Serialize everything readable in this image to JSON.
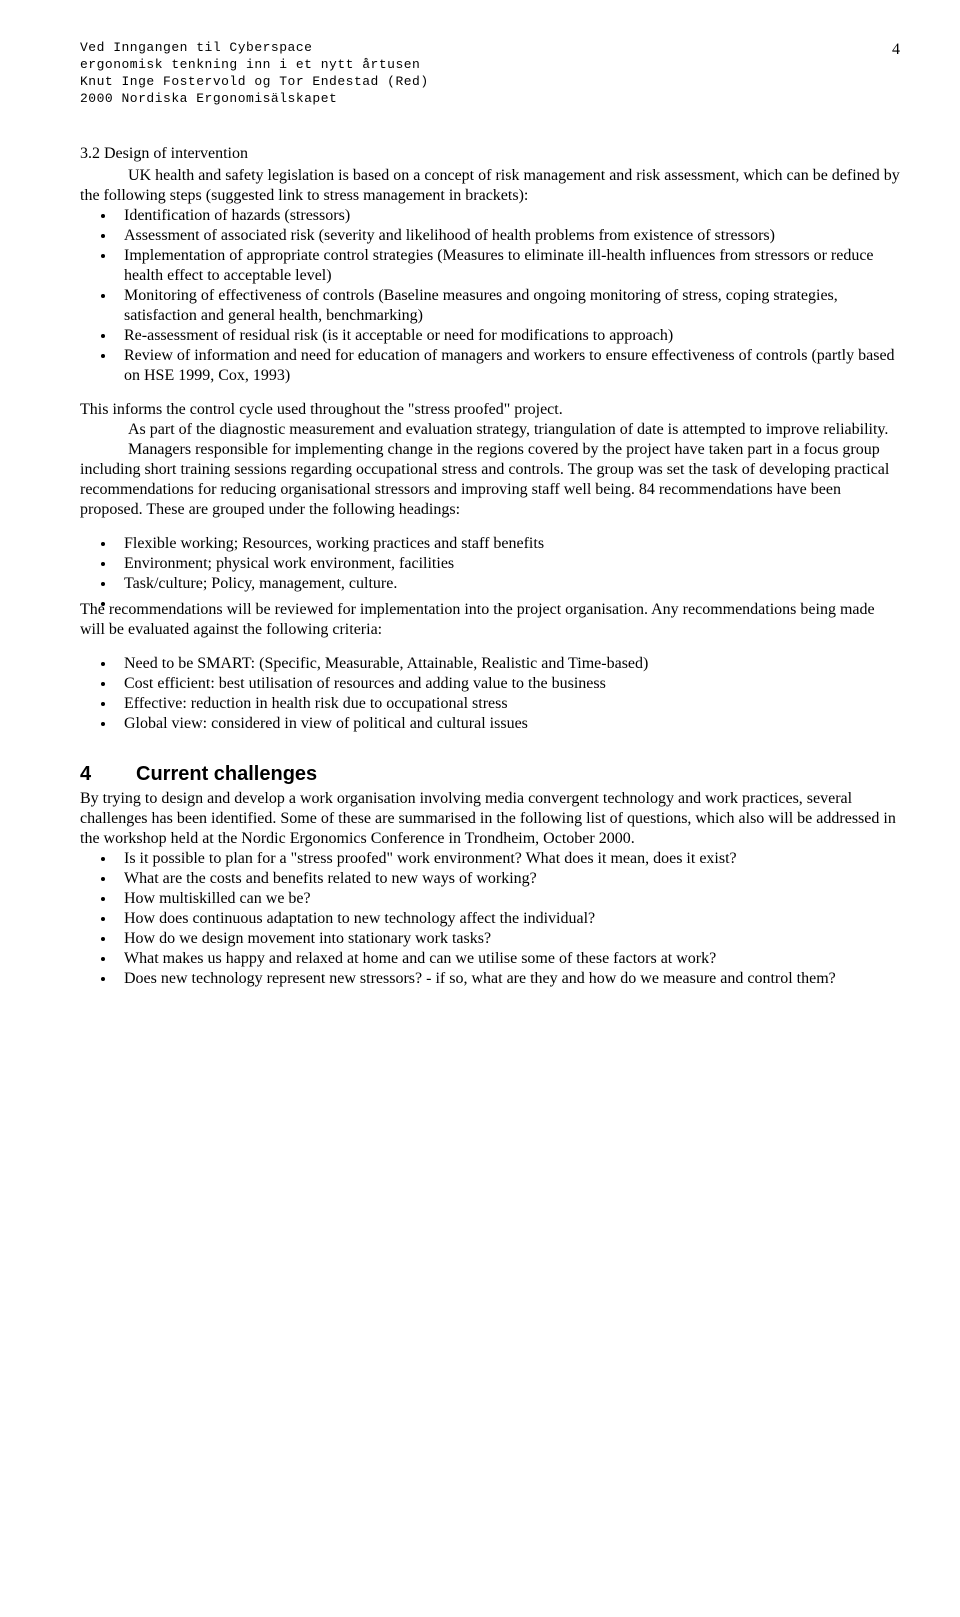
{
  "header": {
    "line1": "Ved Inngangen til Cyberspace",
    "line2": "ergonomisk tenkning inn i et nytt årtusen",
    "line3": "Knut Inge Fostervold og Tor Endestad (Red)",
    "line4": "2000 Nordiska Ergonomisälskapet",
    "page_number": "4"
  },
  "section32": {
    "title": "3.2 Design of intervention",
    "intro": "UK health and safety legislation is based on a concept of risk management and risk assessment, which can be defined by the following steps (suggested link to stress management in brackets):",
    "bullets": [
      "Identification of hazards (stressors)",
      "Assessment of associated risk (severity and likelihood of health problems from existence of stressors)",
      "Implementation of appropriate control strategies (Measures to eliminate ill-health influences from stressors or reduce health effect to acceptable level)",
      "Monitoring of effectiveness of controls (Baseline measures and ongoing monitoring of stress, coping strategies, satisfaction and general health, benchmarking)",
      "Re-assessment of residual risk (is it acceptable or need for modifications to approach)",
      "Review of information and need for education of managers and workers to ensure effectiveness of controls (partly based on HSE 1999, Cox, 1993)"
    ],
    "para1": "This informs the control cycle used throughout the \"stress proofed\" project.",
    "para2": "As part of the diagnostic measurement and evaluation strategy, triangulation of date is attempted to improve reliability.",
    "para3": "Managers responsible for implementing change in the regions covered by the project have taken part in a focus group including short training sessions regarding occupational stress and controls. The group was set the task of developing practical recommendations for reducing organisational stressors and improving staff well being. 84 recommendations have been proposed. These are grouped under the following headings:",
    "bullets2": [
      "Flexible working; Resources, working practices and staff benefits",
      "Environment; physical work environment, facilities",
      "Task/culture; Policy, management, culture.",
      ""
    ],
    "para4": "The recommendations will be reviewed for implementation into the project organisation. Any recommendations being made will be evaluated against the following criteria:",
    "bullets3": [
      "Need to be SMART: (Specific, Measurable, Attainable, Realistic and Time-based)",
      "Cost efficient: best utilisation of resources and adding value to the business",
      "Effective: reduction in health risk due to occupational stress",
      "Global view: considered in view of political and cultural issues"
    ]
  },
  "section4": {
    "num": "4",
    "title": "Current challenges",
    "intro": "By trying to design and develop a work organisation involving media convergent technology and work practices, several challenges has been identified. Some of these are summarised in the following list of questions, which also will be addressed in the workshop held at the Nordic Ergonomics Conference in Trondheim, October 2000.",
    "bullets": [
      "Is it possible to plan for a \"stress proofed\" work environment? What does it mean, does it exist?",
      "What are the costs and benefits related to new ways of working?",
      "How multiskilled can we be?",
      "How does continuous adaptation to new technology affect the individual?",
      "How do we design movement into stationary work tasks?",
      "What makes us happy and relaxed at home and can we utilise some of these factors at work?",
      "Does new technology represent new stressors? - if so, what are they and how do we measure and control them?"
    ]
  }
}
